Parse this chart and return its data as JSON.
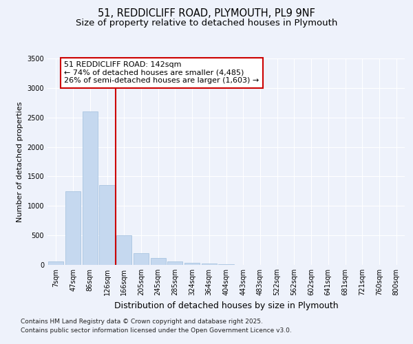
{
  "title": "51, REDDICLIFF ROAD, PLYMOUTH, PL9 9NF",
  "subtitle": "Size of property relative to detached houses in Plymouth",
  "xlabel": "Distribution of detached houses by size in Plymouth",
  "ylabel": "Number of detached properties",
  "categories": [
    "7sqm",
    "47sqm",
    "86sqm",
    "126sqm",
    "166sqm",
    "205sqm",
    "245sqm",
    "285sqm",
    "324sqm",
    "364sqm",
    "404sqm",
    "443sqm",
    "483sqm",
    "522sqm",
    "562sqm",
    "602sqm",
    "641sqm",
    "681sqm",
    "721sqm",
    "760sqm",
    "800sqm"
  ],
  "values": [
    60,
    1250,
    2600,
    1350,
    500,
    200,
    120,
    55,
    30,
    20,
    8,
    3,
    1,
    0,
    0,
    0,
    0,
    0,
    0,
    0,
    0
  ],
  "bar_color": "#c5d8ef",
  "bar_edge_color": "#a8c4e0",
  "vline_x": 3.5,
  "annotation_line1": "51 REDDICLIFF ROAD: 142sqm",
  "annotation_line2": "← 74% of detached houses are smaller (4,485)",
  "annotation_line3": "26% of semi-detached houses are larger (1,603) →",
  "annotation_box_facecolor": "#ffffff",
  "annotation_box_edgecolor": "#cc0000",
  "vline_color": "#cc0000",
  "ylim": [
    0,
    3500
  ],
  "yticks": [
    0,
    500,
    1000,
    1500,
    2000,
    2500,
    3000,
    3500
  ],
  "bg_color": "#eef2fb",
  "grid_color": "#ffffff",
  "footer_line1": "Contains HM Land Registry data © Crown copyright and database right 2025.",
  "footer_line2": "Contains public sector information licensed under the Open Government Licence v3.0.",
  "title_fontsize": 10.5,
  "subtitle_fontsize": 9.5,
  "xlabel_fontsize": 9,
  "ylabel_fontsize": 8,
  "tick_fontsize": 7,
  "annotation_fontsize": 8,
  "footer_fontsize": 6.5
}
